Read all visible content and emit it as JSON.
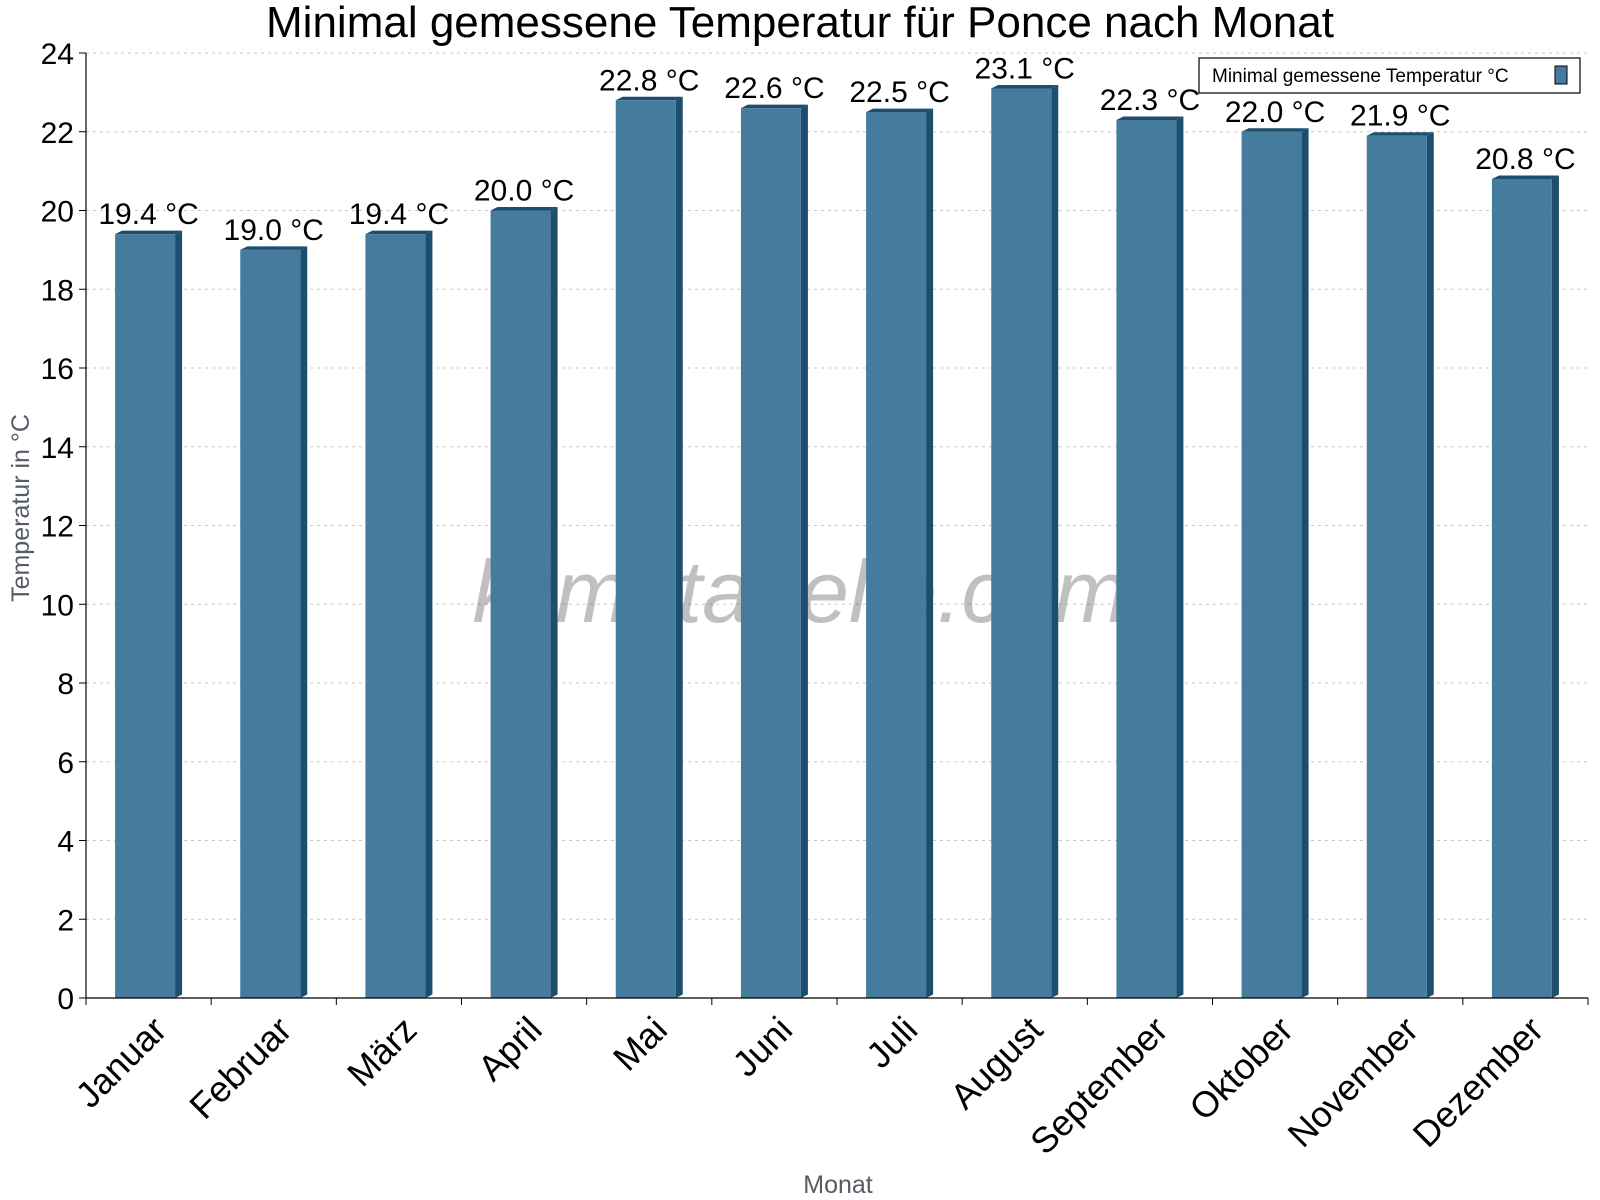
{
  "chart_data": {
    "type": "bar",
    "title": "Minimal gemessene Temperatur für Ponce nach Monat",
    "xlabel": "Monat",
    "ylabel": "Temperatur in °C",
    "categories": [
      "Januar",
      "Februar",
      "März",
      "April",
      "Mai",
      "Juni",
      "Juli",
      "August",
      "September",
      "Oktober",
      "November",
      "Dezember"
    ],
    "series": [
      {
        "name": "Minimal gemessene Temperatur °C",
        "values": [
          19.4,
          19.0,
          19.4,
          20.0,
          22.8,
          22.6,
          22.5,
          23.1,
          22.3,
          22.0,
          21.9,
          20.8
        ],
        "labels": [
          "19.4 °C",
          "19.0 °C",
          "19.4 °C",
          "20.0 °C",
          "22.8 °C",
          "22.6 °C",
          "22.5 °C",
          "23.1 °C",
          "22.3 °C",
          "22.0 °C",
          "21.9 °C",
          "20.8 °C"
        ]
      }
    ],
    "ylim": [
      0,
      24
    ],
    "yticks": [
      0,
      2,
      4,
      6,
      8,
      10,
      12,
      14,
      16,
      18,
      20,
      22,
      24
    ],
    "grid": true,
    "legend_position": "top-right",
    "watermark": "klimatabelle.com"
  },
  "colors": {
    "bar_face": "#457b9d",
    "bar_side": "#1d4e6e",
    "grid": "#c8c8c8",
    "axis": "#000000"
  }
}
